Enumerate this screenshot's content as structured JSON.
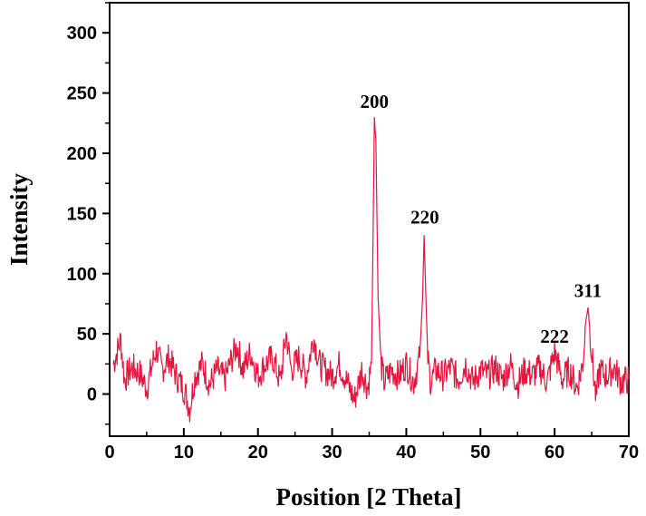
{
  "chart_data": {
    "type": "line",
    "xlabel": "Position [2 Theta]",
    "ylabel": "Intensity",
    "xlim": [
      0,
      70
    ],
    "ylim": [
      -35,
      325
    ],
    "x_ticks": [
      0,
      10,
      20,
      30,
      40,
      50,
      60,
      70
    ],
    "y_ticks": [
      0,
      50,
      100,
      150,
      200,
      250,
      300
    ],
    "grid": false,
    "line_color": "#e8143c",
    "series": [
      {
        "values_x": [
          0.5,
          1.5,
          2.0,
          3.0,
          4.0,
          5.0,
          6.3,
          7.0,
          8.0,
          9.0,
          10.0,
          10.8,
          11.5,
          12.5,
          13.5,
          14.5,
          15.5,
          16.5,
          17.2,
          18.0,
          19.0,
          20.0,
          21.0,
          22.0,
          23.0,
          23.8,
          24.5,
          25.5,
          26.5,
          27.5,
          28.3,
          29.0,
          30.0,
          31.0,
          32.0,
          33.0,
          34.0,
          34.8,
          35.3,
          35.5,
          35.7,
          35.9,
          36.2,
          36.6,
          37.0,
          38.0,
          39.0,
          40.0,
          41.0,
          41.8,
          42.2,
          42.4,
          42.6,
          42.9,
          43.3,
          44.0,
          45.0,
          46.0,
          47.0,
          48.0,
          49.0,
          50.0,
          51.0,
          52.0,
          53.0,
          54.0,
          55.0,
          56.0,
          57.0,
          58.0,
          59.0,
          60.0,
          61.0,
          62.0,
          63.0,
          63.8,
          64.2,
          64.5,
          64.8,
          65.2,
          65.6,
          66.0,
          67.0,
          68.0,
          69.0,
          70.0
        ],
        "values_y": [
          25,
          45,
          12,
          22,
          18,
          5,
          38,
          20,
          30,
          15,
          5,
          -12,
          15,
          25,
          8,
          20,
          12,
          30,
          40,
          20,
          35,
          15,
          25,
          30,
          10,
          50,
          20,
          30,
          15,
          48,
          25,
          20,
          15,
          25,
          10,
          -5,
          20,
          5,
          25,
          120,
          230,
          210,
          80,
          25,
          10,
          20,
          15,
          25,
          10,
          30,
          80,
          132,
          90,
          30,
          10,
          20,
          15,
          22,
          12,
          25,
          10,
          20,
          15,
          22,
          12,
          25,
          8,
          20,
          15,
          22,
          10,
          35,
          12,
          20,
          5,
          25,
          60,
          72,
          50,
          20,
          -5,
          20,
          15,
          22,
          10,
          12
        ]
      }
    ],
    "annotations": [
      {
        "text": "200",
        "x": 35.7,
        "y": 233
      },
      {
        "text": "220",
        "x": 42.5,
        "y": 137
      },
      {
        "text": "222",
        "x": 60.0,
        "y": 38
      },
      {
        "text": "311",
        "x": 64.5,
        "y": 76
      }
    ]
  }
}
